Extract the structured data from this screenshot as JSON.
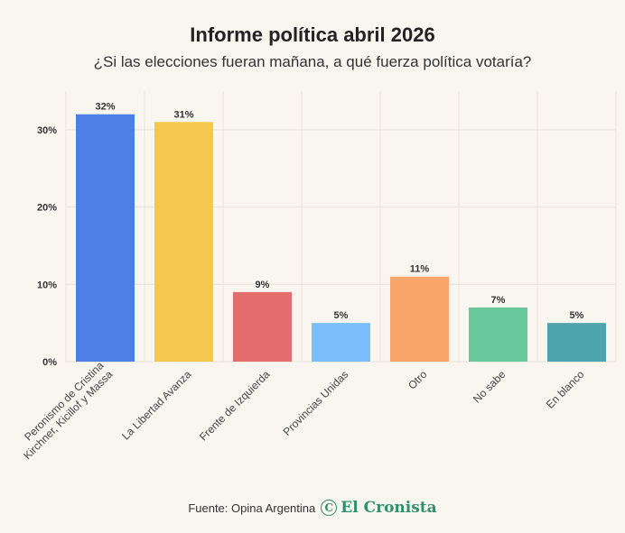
{
  "header": {
    "title": "Informe política abril 2026",
    "subtitle": "¿Si las elecciones fueran mañana, a qué fuerza política votaría?"
  },
  "footer": {
    "source": "Fuente: Opina Argentina",
    "logo_text": "El Cronista",
    "logo_mark": "C"
  },
  "chart_data": {
    "type": "bar",
    "title": "Informe política abril 2026",
    "subtitle": "¿Si las elecciones fueran mañana, a qué fuerza política votaría?",
    "categories": [
      [
        "Peronismo de Cristina",
        "Kirchner, Kicillof y Massa"
      ],
      [
        "La Libertad Avanza"
      ],
      [
        "Frente de Izquierda"
      ],
      [
        "Provincias Unidas"
      ],
      [
        "Otro"
      ],
      [
        "No sabe"
      ],
      [
        "En blanco"
      ]
    ],
    "values": [
      32,
      31,
      9,
      5,
      11,
      7,
      5
    ],
    "value_labels": [
      "32%",
      "31%",
      "9%",
      "5%",
      "11%",
      "7%",
      "5%"
    ],
    "colors": [
      "#4e7fe6",
      "#f5c74f",
      "#e36d6d",
      "#79bdfa",
      "#f9a46a",
      "#69c99c",
      "#4ea3ad"
    ],
    "yticks": [
      0,
      10,
      20,
      30
    ],
    "ytick_labels": [
      "0%",
      "10%",
      "20%",
      "30%"
    ],
    "ylim": [
      0,
      35
    ],
    "xlabel": "",
    "ylabel": "",
    "grid": true
  }
}
